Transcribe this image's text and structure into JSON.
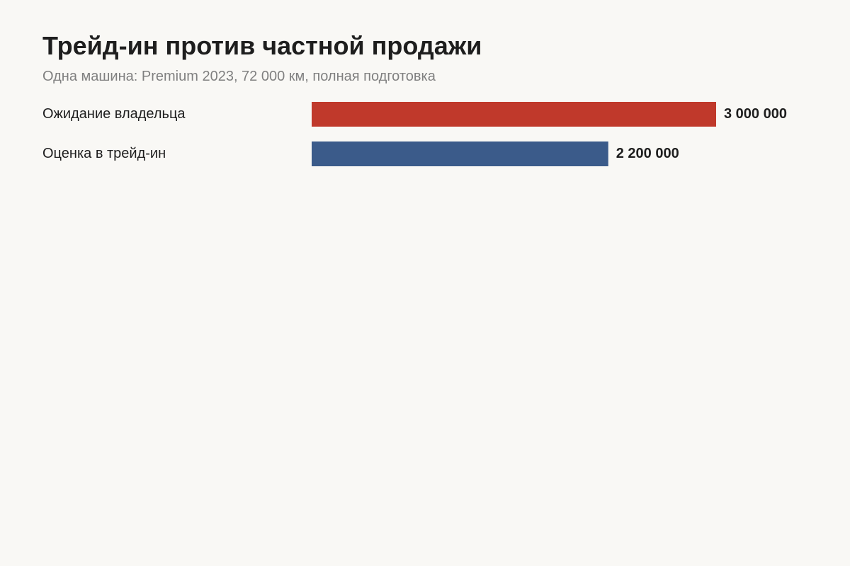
{
  "title": "Трейд-ин против частной продажи",
  "subtitle": "Одна машина: Premium 2023, 72 000 км, полная подготовка",
  "chart_data": {
    "type": "bar",
    "orientation": "horizontal",
    "categories": [
      "Ожидание владельца",
      "Оценка в трейд-ин"
    ],
    "values": [
      3000000,
      2200000
    ],
    "value_labels": [
      "3 000 000",
      "2 200 000"
    ],
    "colors": [
      "#c0392b",
      "#3b5b8a"
    ],
    "xlim": [
      0,
      3000000
    ],
    "grid": false,
    "legend": "none"
  }
}
